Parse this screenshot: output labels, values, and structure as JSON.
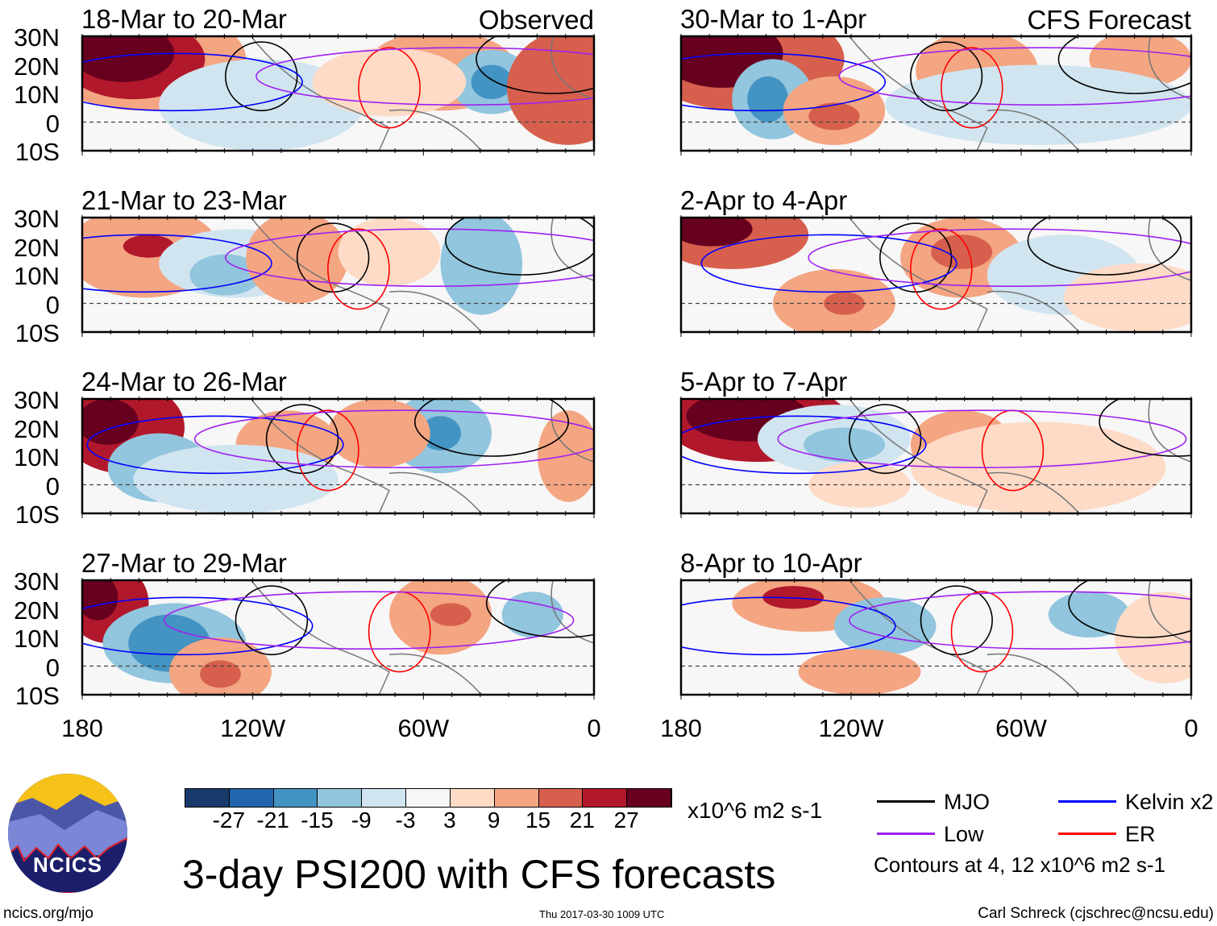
{
  "chart_data": {
    "type": "heatmap",
    "title": "3-day PSI200 with CFS forecasts",
    "units": "x10^6 m2 s-1",
    "lat_ticks": [
      "30N",
      "20N",
      "10N",
      "0",
      "10S"
    ],
    "lon_ticks": [
      "180",
      "120W",
      "60W",
      "0"
    ],
    "lat_range": [
      -10,
      30
    ],
    "lon_range": [
      -180,
      0
    ],
    "panels": [
      {
        "title": "18-Mar to 20-Mar",
        "label": "Observed"
      },
      {
        "title": "30-Mar to 1-Apr",
        "label": "CFS Forecast"
      },
      {
        "title": "21-Mar to 23-Mar",
        "label": ""
      },
      {
        "title": "2-Apr to 4-Apr",
        "label": ""
      },
      {
        "title": "24-Mar to 26-Mar",
        "label": ""
      },
      {
        "title": "5-Apr to 7-Apr",
        "label": ""
      },
      {
        "title": "27-Mar to 29-Mar",
        "label": ""
      },
      {
        "title": "8-Apr to 10-Apr",
        "label": ""
      }
    ],
    "colorbar": {
      "ticks": [
        "-27",
        "-21",
        "-15",
        "-9",
        "-3",
        "3",
        "9",
        "15",
        "21",
        "27"
      ],
      "colors": [
        "#173a6b",
        "#2166ac",
        "#4393c3",
        "#92c5de",
        "#d1e5f0",
        "#f7f7f7",
        "#fddbc7",
        "#f4a582",
        "#d6604d",
        "#b2182b",
        "#67001f"
      ]
    },
    "legend": [
      {
        "name": "MJO",
        "color": "#000000"
      },
      {
        "name": "Kelvin x2",
        "color": "#0000ff"
      },
      {
        "name": "Low",
        "color": "#a020f0"
      },
      {
        "name": "ER",
        "color": "#ff0000"
      }
    ],
    "contour_note": "Contours at 4, 12 x10^6 m2 s-1"
  },
  "logo": {
    "text": "NCICS"
  },
  "footer": {
    "url": "ncics.org/mjo",
    "timestamp": "Thu 2017-03-30 1009 UTC",
    "author": "Carl Schreck (cjschrec@ncsu.edu)"
  }
}
